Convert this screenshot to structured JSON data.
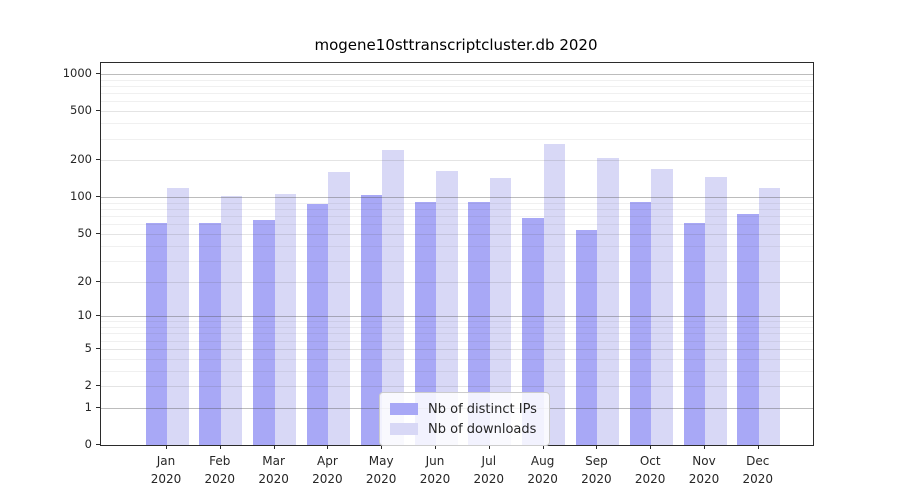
{
  "chart_data": {
    "type": "bar",
    "title": "mogene10sttranscriptcluster.db 2020",
    "categories": [
      [
        "Jan",
        "2020"
      ],
      [
        "Feb",
        "2020"
      ],
      [
        "Mar",
        "2020"
      ],
      [
        "Apr",
        "2020"
      ],
      [
        "May",
        "2020"
      ],
      [
        "Jun",
        "2020"
      ],
      [
        "Jul",
        "2020"
      ],
      [
        "Aug",
        "2020"
      ],
      [
        "Sep",
        "2020"
      ],
      [
        "Oct",
        "2020"
      ],
      [
        "Nov",
        "2020"
      ],
      [
        "Dec",
        "2020"
      ]
    ],
    "series": [
      {
        "name": "Nb of distinct IPs",
        "color": "#a8a8f6",
        "values": [
          61,
          61,
          65,
          88,
          104,
          92,
          92,
          67,
          54,
          92,
          62,
          73
        ]
      },
      {
        "name": "Nb of downloads",
        "color": "#d8d8f6",
        "values": [
          119,
          103,
          107,
          160,
          243,
          164,
          144,
          273,
          209,
          169,
          145,
          119
        ]
      }
    ],
    "y_scale": "log1p",
    "y_ticks": [
      0,
      1,
      2,
      5,
      10,
      20,
      50,
      100,
      200,
      500,
      1000
    ],
    "y_major_gridlines": [
      1,
      10,
      100,
      1000
    ],
    "y_minor_labeled_gridlines": [
      2,
      5,
      20,
      50,
      200,
      500
    ],
    "ylim": [
      0,
      1230
    ],
    "xlabel": "",
    "ylabel": "",
    "grid": true,
    "legend_position": "lower center"
  },
  "colors": {
    "background": "#ffffff",
    "spine": "#2b2b2b",
    "bar_distinct_ips": "#a8a8f6",
    "bar_downloads": "#d8d8f6",
    "text": "#262626",
    "legend_border": "#cccccc"
  }
}
